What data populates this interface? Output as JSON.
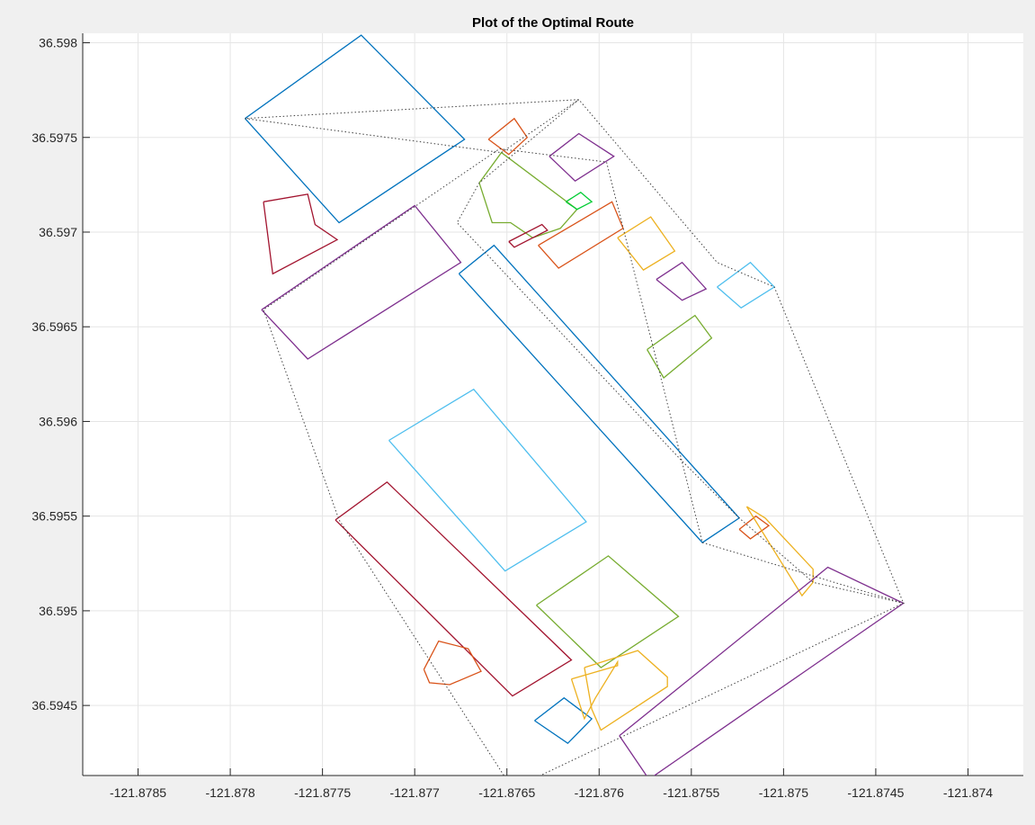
{
  "figure": {
    "background": "#f0f0f0"
  },
  "chart_data": {
    "type": "line",
    "title": "Plot of the Optimal Route",
    "xlabel": "",
    "ylabel": "",
    "xlim": [
      -121.8788,
      -121.8737
    ],
    "ylim": [
      36.59413,
      36.59805
    ],
    "xticks": [
      -121.8785,
      -121.878,
      -121.8775,
      -121.877,
      -121.8765,
      -121.876,
      -121.8755,
      -121.875,
      -121.8745,
      -121.874
    ],
    "xtick_labels": [
      "-121.8785",
      "-121.878",
      "-121.8775",
      "-121.877",
      "-121.8765",
      "-121.876",
      "-121.8755",
      "-121.875",
      "-121.8745",
      "-121.874"
    ],
    "yticks": [
      36.5945,
      36.595,
      36.5955,
      36.596,
      36.5965,
      36.597,
      36.5975,
      36.598
    ],
    "ytick_labels": [
      "36.5945",
      "36.595",
      "36.5955",
      "36.596",
      "36.5965",
      "36.597",
      "36.5975",
      "36.598"
    ],
    "grid": true,
    "colors": {
      "axes_bg": "#ffffff",
      "grid": "#e5e5e5",
      "axis": "#262626",
      "route": "#404040"
    },
    "obstacles": [
      {
        "color": "#0072BD",
        "x": [
          -121.87792,
          -121.87729,
          -121.87673,
          -121.87741,
          -121.87792
        ],
        "y": [
          36.5976,
          36.59804,
          36.59749,
          36.59705,
          36.5976
        ]
      },
      {
        "color": "#A2142F",
        "x": [
          -121.87782,
          -121.87758,
          -121.87754,
          -121.87742,
          -121.87777,
          -121.87782
        ],
        "y": [
          36.59716,
          36.5972,
          36.59704,
          36.59696,
          36.59678,
          36.59716
        ]
      },
      {
        "color": "#7E2F8E",
        "x": [
          -121.87783,
          -121.877,
          -121.87675,
          -121.87758,
          -121.87783
        ],
        "y": [
          36.59659,
          36.59714,
          36.59684,
          36.59633,
          36.59659
        ]
      },
      {
        "color": "#D95319",
        "x": [
          -121.8766,
          -121.87646,
          -121.87639,
          -121.87649,
          -121.8766
        ],
        "y": [
          36.59749,
          36.5976,
          36.5975,
          36.59741,
          36.59749
        ]
      },
      {
        "color": "#77AC30",
        "x": [
          -121.87665,
          -121.87653,
          -121.87612,
          -121.87621,
          -121.87636,
          -121.87648,
          -121.87658,
          -121.87665
        ],
        "y": [
          36.59726,
          36.59742,
          36.59712,
          36.59702,
          36.59697,
          36.59705,
          36.59705,
          36.59726
        ]
      },
      {
        "color": "#7E2F8E",
        "x": [
          -121.87627,
          -121.87611,
          -121.87592,
          -121.87613,
          -121.87627
        ],
        "y": [
          36.5974,
          36.59752,
          36.5974,
          36.59727,
          36.5974
        ]
      },
      {
        "color": "#00CC33",
        "x": [
          -121.87618,
          -121.8761,
          -121.87604,
          -121.87612,
          -121.87618
        ],
        "y": [
          36.59716,
          36.59721,
          36.59716,
          36.59712,
          36.59716
        ]
      },
      {
        "color": "#A2142F",
        "x": [
          -121.87649,
          -121.87631,
          -121.87628,
          -121.87646,
          -121.87649
        ],
        "y": [
          36.59695,
          36.59704,
          36.59701,
          36.59692,
          36.59695
        ]
      },
      {
        "color": "#D95319",
        "x": [
          -121.87633,
          -121.87593,
          -121.87587,
          -121.87622,
          -121.87633
        ],
        "y": [
          36.59693,
          36.59716,
          36.59702,
          36.59681,
          36.59693
        ]
      },
      {
        "color": "#EDB120",
        "x": [
          -121.8759,
          -121.87572,
          -121.87559,
          -121.87576,
          -121.8759
        ],
        "y": [
          36.59697,
          36.59708,
          36.5969,
          36.5968,
          36.59697
        ]
      },
      {
        "color": "#7E2F8E",
        "x": [
          -121.87569,
          -121.87555,
          -121.87542,
          -121.87555,
          -121.87569
        ],
        "y": [
          36.59675,
          36.59684,
          36.5967,
          36.59664,
          36.59675
        ]
      },
      {
        "color": "#4DBEEE",
        "x": [
          -121.87536,
          -121.87518,
          -121.87505,
          -121.87523,
          -121.87536
        ],
        "y": [
          36.59671,
          36.59684,
          36.59671,
          36.5966,
          36.59671
        ]
      },
      {
        "color": "#77AC30",
        "x": [
          -121.87574,
          -121.87548,
          -121.87539,
          -121.87565,
          -121.87574
        ],
        "y": [
          36.59638,
          36.59656,
          36.59644,
          36.59623,
          36.59638
        ]
      },
      {
        "color": "#0072BD",
        "x": [
          -121.87676,
          -121.87657,
          -121.87524,
          -121.87544,
          -121.87676
        ],
        "y": [
          36.59678,
          36.59693,
          36.59549,
          36.59536,
          36.59678
        ]
      },
      {
        "color": "#4DBEEE",
        "x": [
          -121.87714,
          -121.87668,
          -121.87607,
          -121.87651,
          -121.87714
        ],
        "y": [
          36.5959,
          36.59617,
          36.59547,
          36.59521,
          36.5959
        ]
      },
      {
        "color": "#A2142F",
        "x": [
          -121.87743,
          -121.87715,
          -121.87615,
          -121.87647,
          -121.87743
        ],
        "y": [
          36.59548,
          36.59568,
          36.59474,
          36.59455,
          36.59548
        ]
      },
      {
        "color": "#D95319",
        "x": [
          -121.87524,
          -121.87515,
          -121.87508,
          -121.87518,
          -121.87524
        ],
        "y": [
          36.59543,
          36.5955,
          36.59545,
          36.59538,
          36.59543
        ]
      },
      {
        "color": "#EDB120",
        "x": [
          -121.8752,
          -121.8751,
          -121.87484,
          -121.87484,
          -121.8749,
          -121.8752
        ],
        "y": [
          36.59555,
          36.59549,
          36.59522,
          36.59515,
          36.59508,
          36.59555
        ]
      },
      {
        "color": "#77AC30",
        "x": [
          -121.87634,
          -121.87595,
          -121.87557,
          -121.87599,
          -121.87634
        ],
        "y": [
          36.59503,
          36.59529,
          36.59497,
          36.5947,
          36.59503
        ]
      },
      {
        "color": "#7E2F8E",
        "x": [
          -121.87589,
          -121.87476,
          -121.87435,
          -121.87573,
          -121.87589
        ],
        "y": [
          36.59434,
          36.59523,
          36.59504,
          36.59411,
          36.59434
        ]
      },
      {
        "color": "#D95319",
        "x": [
          -121.87695,
          -121.87687,
          -121.87671,
          -121.87664,
          -121.87681,
          -121.87692,
          -121.87695
        ],
        "y": [
          36.59469,
          36.59484,
          36.5948,
          36.59468,
          36.59461,
          36.59462,
          36.59469
        ]
      },
      {
        "color": "#0072BD",
        "x": [
          -121.87635,
          -121.87619,
          -121.87604,
          -121.87617,
          -121.87635
        ],
        "y": [
          36.59442,
          36.59454,
          36.59443,
          36.5943,
          36.59442
        ]
      },
      {
        "color": "#EDB120",
        "x": [
          -121.87608,
          -121.87579,
          -121.87563,
          -121.87563,
          -121.87599,
          -121.87604,
          -121.87608
        ],
        "y": [
          36.5947,
          36.59479,
          36.59465,
          36.5946,
          36.59437,
          36.59448,
          36.5947
        ]
      },
      {
        "color": "#EDB120",
        "x": [
          -121.87615,
          -121.8759,
          -121.8759,
          -121.87602,
          -121.87608,
          -121.87615
        ],
        "y": [
          36.59464,
          36.59471,
          36.59473,
          36.59454,
          36.59443,
          36.59464
        ]
      }
    ],
    "route": {
      "style": "dotted",
      "x": [
        -121.87792,
        -121.87653,
        -121.87611,
        -121.87665,
        -121.87677,
        -121.87555,
        -121.87524,
        -121.87484,
        -121.87435,
        -121.87647,
        -121.87741,
        -121.87782,
        -121.87654,
        -121.87596,
        -121.87544,
        -121.87435,
        -121.87505,
        -121.87536,
        -121.87611,
        -121.87792
      ],
      "y": [
        36.5976,
        36.59742,
        36.5977,
        36.59726,
        36.59705,
        36.59579,
        36.59549,
        36.59515,
        36.59504,
        36.59406,
        36.59548,
        36.59659,
        36.59744,
        36.59737,
        36.59536,
        36.59504,
        36.59671,
        36.59684,
        36.5977,
        36.5976
      ]
    }
  }
}
